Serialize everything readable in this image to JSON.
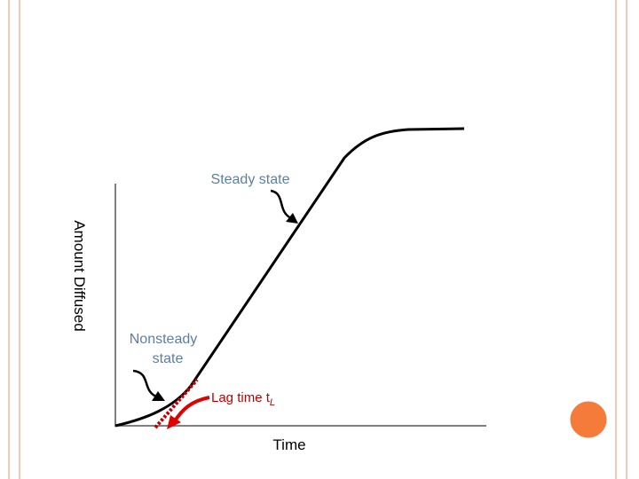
{
  "labels": {
    "steady_state": "Steady state",
    "nonsteady": [
      "Nonsteady",
      "state"
    ],
    "lag_time": "Lag time t",
    "lag_subscript": "L",
    "x_axis": "Time",
    "y_axis": "Amount Diffused"
  }
}
